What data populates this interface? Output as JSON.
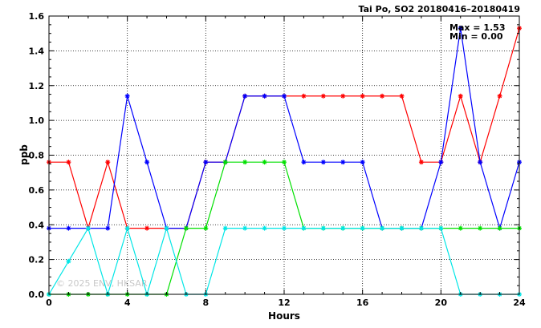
{
  "chart_data": {
    "type": "line",
    "title": "Tai Po, SO2 20180416–20180419",
    "xlabel": "Hours",
    "ylabel": "ppb",
    "xlim": [
      0,
      24
    ],
    "ylim": [
      0,
      1.6
    ],
    "x_ticks": [
      0,
      4,
      8,
      12,
      16,
      20,
      24
    ],
    "y_ticks": [
      "0.0",
      "0.2",
      "0.4",
      "0.6",
      "0.8",
      "1.0",
      "1.2",
      "1.4",
      "1.6"
    ],
    "grid": true,
    "stats": {
      "max_label": "Max = 1.53",
      "min_label": "Min = 0.00"
    },
    "watermark": "© 2025 ENV, HKSAR",
    "x": [
      0,
      1,
      2,
      3,
      4,
      5,
      6,
      7,
      8,
      9,
      10,
      11,
      12,
      13,
      14,
      15,
      16,
      17,
      18,
      19,
      20,
      21,
      22,
      23,
      24
    ],
    "series": [
      {
        "color": "#ff0000",
        "values": [
          0.76,
          0.76,
          0.38,
          0.76,
          0.38,
          0.38,
          0.38,
          0.38,
          0.76,
          0.76,
          1.14,
          1.14,
          1.14,
          1.14,
          1.14,
          1.14,
          1.14,
          1.14,
          1.14,
          0.76,
          0.76,
          1.14,
          0.76,
          1.14,
          1.53
        ]
      },
      {
        "color": "#0000ff",
        "values": [
          0.38,
          0.38,
          0.38,
          0.38,
          1.14,
          0.76,
          0.38,
          0.38,
          0.76,
          0.76,
          1.14,
          1.14,
          1.14,
          0.76,
          0.76,
          0.76,
          0.76,
          0.38,
          0.38,
          0.38,
          0.76,
          1.53,
          0.76,
          0.38,
          0.76
        ]
      },
      {
        "color": "#00e000",
        "values": [
          0.0,
          0.0,
          0.0,
          0.0,
          0.0,
          0.0,
          0.0,
          0.38,
          0.38,
          0.76,
          0.76,
          0.76,
          0.76,
          0.38,
          0.38,
          0.38,
          0.38,
          0.38,
          0.38,
          0.38,
          0.38,
          0.38,
          0.38,
          0.38,
          0.38
        ]
      },
      {
        "color": "#00e6e6",
        "values": [
          0.0,
          0.19,
          0.38,
          0.0,
          0.38,
          0.0,
          0.38,
          0.0,
          0.0,
          0.38,
          0.38,
          0.38,
          0.38,
          0.38,
          0.38,
          0.38,
          0.38,
          0.38,
          0.38,
          0.38,
          0.38,
          0.0,
          0.0,
          0.0,
          0.0
        ]
      }
    ]
  }
}
